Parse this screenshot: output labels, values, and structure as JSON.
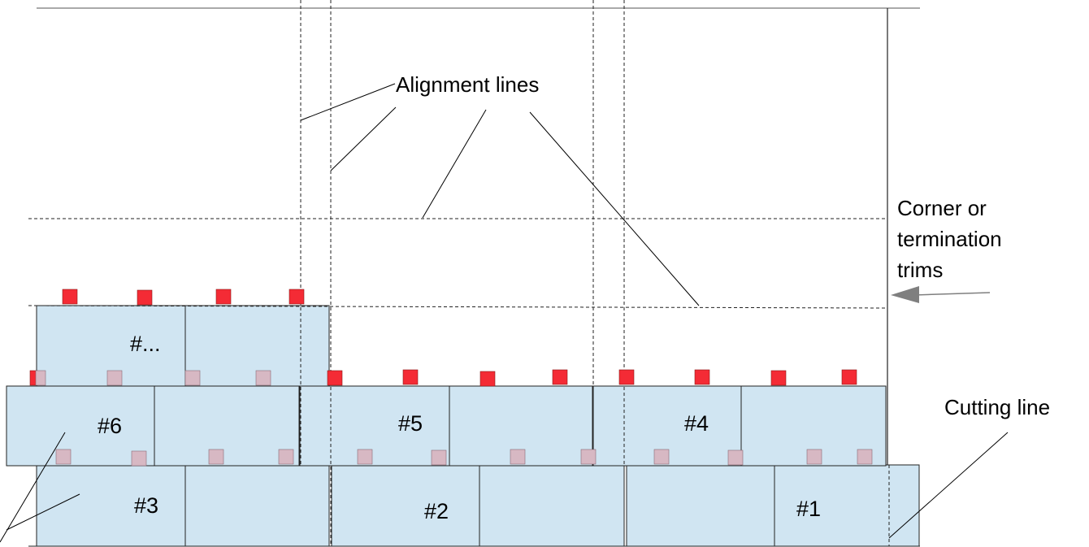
{
  "annotations": {
    "alignment_lines": "Alignment lines",
    "corner_trims": [
      "Corner or",
      "termination",
      "trims"
    ],
    "cutting_line": "Cutting line"
  },
  "panels": {
    "p1": "#1",
    "p2": "#2",
    "p3": "#3",
    "p4": "#4",
    "p5": "#5",
    "p6": "#6",
    "pn": "#..."
  },
  "colors": {
    "panel_fill": "#d0e5f2",
    "clip_red": "#f42b35",
    "clip_pink": "#d7b8c3",
    "arrow": "#7f7f7f"
  }
}
